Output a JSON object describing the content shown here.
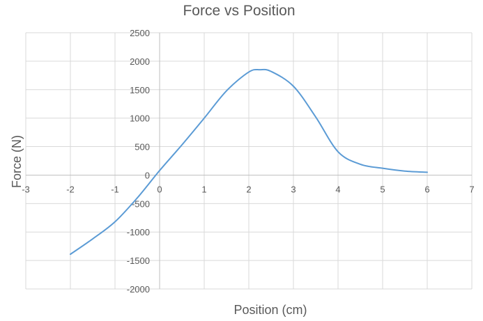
{
  "chart_data": {
    "type": "line",
    "title": "Force vs Position",
    "xlabel": "Position (cm)",
    "ylabel": "Force (N)",
    "xlim": [
      -3,
      7
    ],
    "ylim": [
      -2000,
      2500
    ],
    "x_ticks": [
      "-3",
      "-2",
      "-1",
      "0",
      "1",
      "2",
      "3",
      "4",
      "5",
      "6",
      "7"
    ],
    "y_ticks": [
      "2500",
      "2000",
      "1500",
      "1000",
      "500",
      "0",
      "-500",
      "-1000",
      "-1500",
      "-2000"
    ],
    "grid": true,
    "legend": "none",
    "series": [
      {
        "color": "#5b9bd5",
        "x": [
          -2,
          -1.5,
          -1,
          -0.5,
          0,
          0.5,
          1,
          1.5,
          2,
          2.25,
          2.5,
          3,
          3.5,
          4,
          4.5,
          5,
          5.5,
          6
        ],
        "y": [
          -1390,
          -1120,
          -820,
          -400,
          80,
          530,
          1000,
          1480,
          1810,
          1850,
          1820,
          1560,
          1020,
          410,
          190,
          120,
          70,
          50
        ]
      }
    ]
  }
}
